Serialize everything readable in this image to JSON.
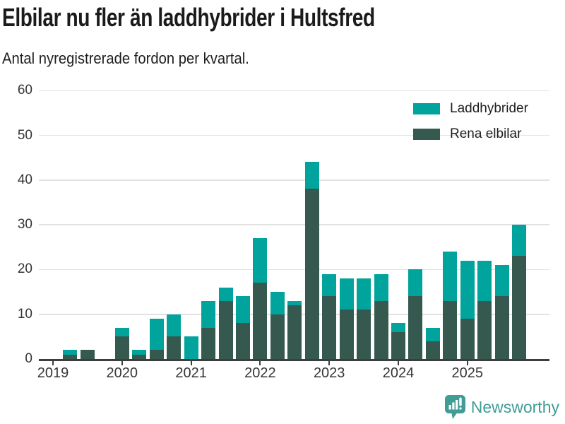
{
  "title": "Elbilar nu fler än laddhybrider i Hultsfred",
  "subtitle": "Antal nyregistrerade fordon per kvartal.",
  "chart_data": {
    "type": "bar",
    "stacked": true,
    "title": "Elbilar nu fler än laddhybrider i Hultsfred",
    "subtitle": "Antal nyregistrerade fordon per kvartal.",
    "xlabel": "",
    "ylabel": "",
    "ylim": [
      0,
      60
    ],
    "yticks": [
      0,
      10,
      20,
      30,
      40,
      50,
      60
    ],
    "grid": true,
    "legend_position": "top-right",
    "x_tick_labels": [
      "2019",
      "2020",
      "2021",
      "2022",
      "2023",
      "2024",
      "2025"
    ],
    "categories": [
      "2019 Q1",
      "2019 Q2",
      "2019 Q3",
      "2019 Q4",
      "2020 Q1",
      "2020 Q2",
      "2020 Q3",
      "2020 Q4",
      "2021 Q1",
      "2021 Q2",
      "2021 Q3",
      "2021 Q4",
      "2022 Q1",
      "2022 Q2",
      "2022 Q3",
      "2022 Q4",
      "2023 Q1",
      "2023 Q2",
      "2023 Q3",
      "2023 Q4",
      "2024 Q1",
      "2024 Q2",
      "2024 Q3",
      "2024 Q4",
      "2025 Q1",
      "2025 Q2",
      "2025 Q3",
      "2025 Q4"
    ],
    "series": [
      {
        "name": "Rena elbilar",
        "stack_order": "bottom",
        "color": "#35594f",
        "values": [
          0,
          1,
          2,
          0,
          5,
          1,
          2,
          5,
          0,
          7,
          13,
          8,
          17,
          10,
          12,
          38,
          14,
          11,
          11,
          13,
          6,
          14,
          4,
          13,
          9,
          13,
          14,
          23
        ]
      },
      {
        "name": "Laddhybrider",
        "stack_order": "top",
        "color": "#00a49c",
        "values": [
          0,
          1,
          0,
          0,
          2,
          1,
          7,
          5,
          5,
          6,
          3,
          6,
          10,
          5,
          1,
          6,
          5,
          7,
          7,
          6,
          2,
          6,
          3,
          11,
          13,
          9,
          7,
          7
        ]
      }
    ],
    "stacked_totals": [
      0,
      2,
      2,
      0,
      7,
      2,
      9,
      10,
      5,
      13,
      16,
      14,
      27,
      15,
      13,
      44,
      19,
      18,
      18,
      19,
      8,
      20,
      7,
      24,
      22,
      22,
      21,
      30
    ]
  },
  "legend": {
    "items": [
      {
        "label": "Laddhybrider",
        "color": "#00a49c"
      },
      {
        "label": "Rena elbilar",
        "color": "#35594f"
      }
    ]
  },
  "footer": {
    "brand": "Newsworthy",
    "brand_color": "#3f9d95",
    "logo_icon": "speech-bubble-bar-chart-exclamation"
  }
}
